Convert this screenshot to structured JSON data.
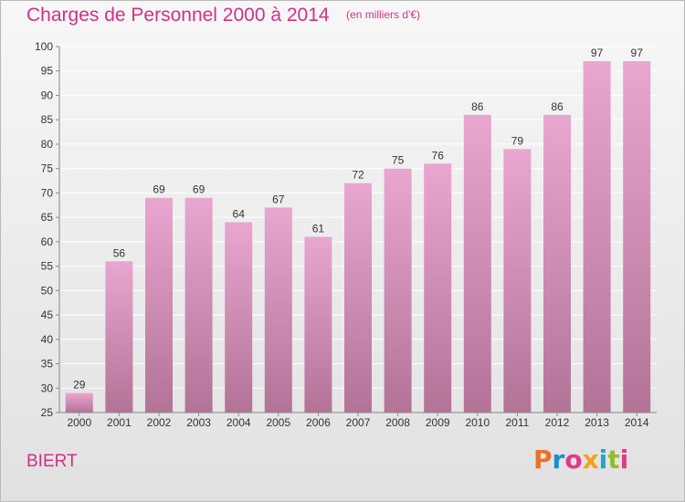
{
  "title": "Charges de Personnel 2000 à 2014",
  "subtitle": "(en milliers d'€)",
  "commune": "BIERT",
  "logo": {
    "text": "Proxiti",
    "colors": [
      "#e8712b",
      "#1a8ec8",
      "#e23a87",
      "#f2a21e",
      "#23a6c8",
      "#8fbf26",
      "#e23a87"
    ]
  },
  "colors": {
    "accent": "#d0308a",
    "bar_top": "#e9a6d0",
    "bar_bottom": "#b37397",
    "axis": "#888888",
    "grid": "#ffffff"
  },
  "chart_data": {
    "type": "bar",
    "categories": [
      "2000",
      "2001",
      "2002",
      "2003",
      "2004",
      "2005",
      "2006",
      "2007",
      "2008",
      "2009",
      "2010",
      "2011",
      "2012",
      "2013",
      "2014"
    ],
    "values": [
      29,
      56,
      69,
      69,
      64,
      67,
      61,
      72,
      75,
      76,
      86,
      79,
      86,
      97,
      97
    ],
    "data_labels": [
      "29",
      "56",
      "69",
      "69",
      "64",
      "67",
      "61",
      "72",
      "75",
      "76",
      "86",
      "79",
      "86",
      "97",
      "97"
    ],
    "y_ticks": [
      25,
      30,
      35,
      40,
      45,
      50,
      55,
      60,
      65,
      70,
      75,
      80,
      85,
      90,
      95,
      100
    ],
    "ylim": [
      25,
      100
    ],
    "grid": true,
    "xlabel": "",
    "ylabel": ""
  }
}
